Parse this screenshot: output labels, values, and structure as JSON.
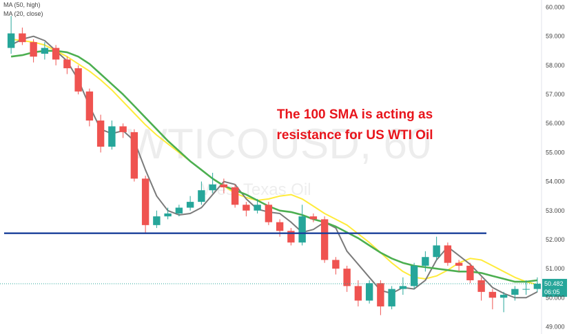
{
  "chart_data": {
    "type": "candlestick",
    "symbol": "WTICOUSD, 60",
    "instrument": "West Texas Oil",
    "indicators": [
      {
        "label": "MA (50, high)",
        "color": "#ffeb3b",
        "values": [
          58.9,
          58.85,
          58.8,
          58.7,
          58.5,
          58.3,
          58.05,
          57.8,
          57.5,
          57.15,
          56.75,
          56.35,
          55.95,
          55.6,
          55.3,
          55.0,
          54.7,
          54.4,
          54.1,
          53.85,
          53.6,
          53.45,
          53.35,
          53.4,
          53.5,
          53.55,
          53.4,
          53.15,
          52.9,
          52.7,
          52.5,
          52.2,
          51.9,
          51.55,
          51.2,
          50.9,
          50.7,
          50.65,
          50.75,
          50.95,
          51.2,
          51.35,
          51.3,
          51.1,
          50.9,
          50.7,
          50.55,
          50.45
        ]
      },
      {
        "label": "MA (20, close)",
        "color": "#7a7a7a",
        "values": [
          58.7,
          58.9,
          59.0,
          58.85,
          58.5,
          58.15,
          57.5,
          56.6,
          55.8,
          55.65,
          55.75,
          55.4,
          54.4,
          53.5,
          53.0,
          52.85,
          52.9,
          53.1,
          53.55,
          54.0,
          53.9,
          53.4,
          53.05,
          52.95,
          52.9,
          52.6,
          52.25,
          52.35,
          52.6,
          52.4,
          51.6,
          51.15,
          50.7,
          50.25,
          50.15,
          50.35,
          50.3,
          50.6,
          51.3,
          51.75,
          51.45,
          51.15,
          50.75,
          50.35,
          50.15,
          50.0,
          50.0,
          50.2
        ]
      },
      {
        "label": "100 SMA",
        "color": "#4caf50",
        "values": [
          58.3,
          58.35,
          58.45,
          58.5,
          58.5,
          58.45,
          58.3,
          58.05,
          57.7,
          57.35,
          57.0,
          56.6,
          56.2,
          55.8,
          55.4,
          55.05,
          54.7,
          54.4,
          54.1,
          53.85,
          53.7,
          53.55,
          53.35,
          53.15,
          53.0,
          52.95,
          52.85,
          52.7,
          52.6,
          52.45,
          52.25,
          52.05,
          51.8,
          51.55,
          51.35,
          51.2,
          51.1,
          51.05,
          51.0,
          50.95,
          50.9,
          50.9,
          50.85,
          50.75,
          50.65,
          50.55,
          50.55,
          50.6
        ]
      }
    ],
    "candles": {
      "open": [
        58.6,
        59.1,
        58.8,
        58.4,
        58.6,
        58.2,
        57.9,
        57.1,
        56.1,
        55.2,
        55.9,
        55.7,
        54.1,
        52.5,
        52.8,
        52.9,
        53.1,
        53.3,
        53.7,
        53.9,
        53.8,
        53.2,
        53.0,
        53.2,
        52.6,
        52.3,
        51.9,
        52.8,
        52.7,
        51.3,
        51.0,
        50.4,
        49.9,
        50.5,
        49.7,
        50.3,
        50.4,
        51.1,
        51.4,
        51.8,
        51.2,
        51.1,
        50.6,
        50.2,
        50.0,
        50.1,
        50.3,
        50.3
      ],
      "close": [
        59.1,
        58.8,
        58.3,
        58.6,
        58.2,
        57.9,
        57.1,
        56.1,
        55.2,
        55.9,
        55.7,
        54.1,
        52.5,
        52.8,
        52.9,
        53.1,
        53.3,
        53.7,
        53.9,
        53.8,
        53.2,
        53.0,
        53.2,
        52.6,
        52.3,
        51.9,
        52.8,
        52.7,
        51.3,
        51.0,
        50.4,
        49.9,
        50.5,
        49.7,
        50.3,
        50.4,
        51.1,
        51.4,
        51.8,
        51.2,
        51.1,
        50.6,
        50.2,
        50.0,
        50.1,
        50.3,
        50.3,
        50.48
      ],
      "high": [
        59.7,
        59.3,
        58.9,
        58.8,
        58.7,
        58.3,
        58.0,
        57.2,
        56.3,
        56.1,
        56.0,
        55.8,
        54.2,
        53.0,
        53.1,
        53.2,
        53.5,
        54.0,
        54.3,
        54.1,
        53.9,
        53.3,
        53.4,
        53.3,
        52.7,
        52.4,
        53.2,
        52.9,
        52.8,
        51.4,
        51.1,
        50.6,
        50.6,
        50.6,
        50.4,
        50.7,
        51.2,
        51.6,
        52.1,
        51.9,
        51.3,
        51.2,
        50.7,
        50.3,
        50.2,
        50.4,
        50.6,
        50.7
      ],
      "low": [
        58.4,
        58.7,
        58.1,
        58.2,
        58.0,
        57.7,
        57.0,
        55.9,
        55.0,
        55.1,
        55.5,
        54.0,
        52.2,
        52.4,
        52.7,
        52.8,
        53.0,
        53.2,
        53.6,
        53.6,
        53.1,
        52.8,
        52.9,
        52.5,
        52.1,
        51.8,
        51.8,
        52.6,
        51.2,
        50.8,
        50.2,
        49.7,
        49.8,
        49.4,
        49.6,
        50.1,
        50.3,
        50.9,
        51.3,
        51.1,
        50.9,
        50.5,
        49.9,
        49.6,
        49.5,
        49.9,
        50.1,
        50.2
      ]
    },
    "support_level": 52.22,
    "support_color": "#1a3f9a",
    "current_price": "50.482",
    "countdown": "06:05",
    "annotation": [
      "The 100 SMA is acting as",
      "resistance for US WTI Oil"
    ],
    "ylim": [
      48.75,
      60.25
    ],
    "y_ticks": [
      "49.000",
      "50.000",
      "51.000",
      "52.000",
      "53.000",
      "54.000",
      "55.000",
      "56.000",
      "57.000",
      "58.000",
      "59.000",
      "60.000"
    ],
    "bull_color": "#26a69a",
    "bear_color": "#ef5350",
    "grid": false
  }
}
